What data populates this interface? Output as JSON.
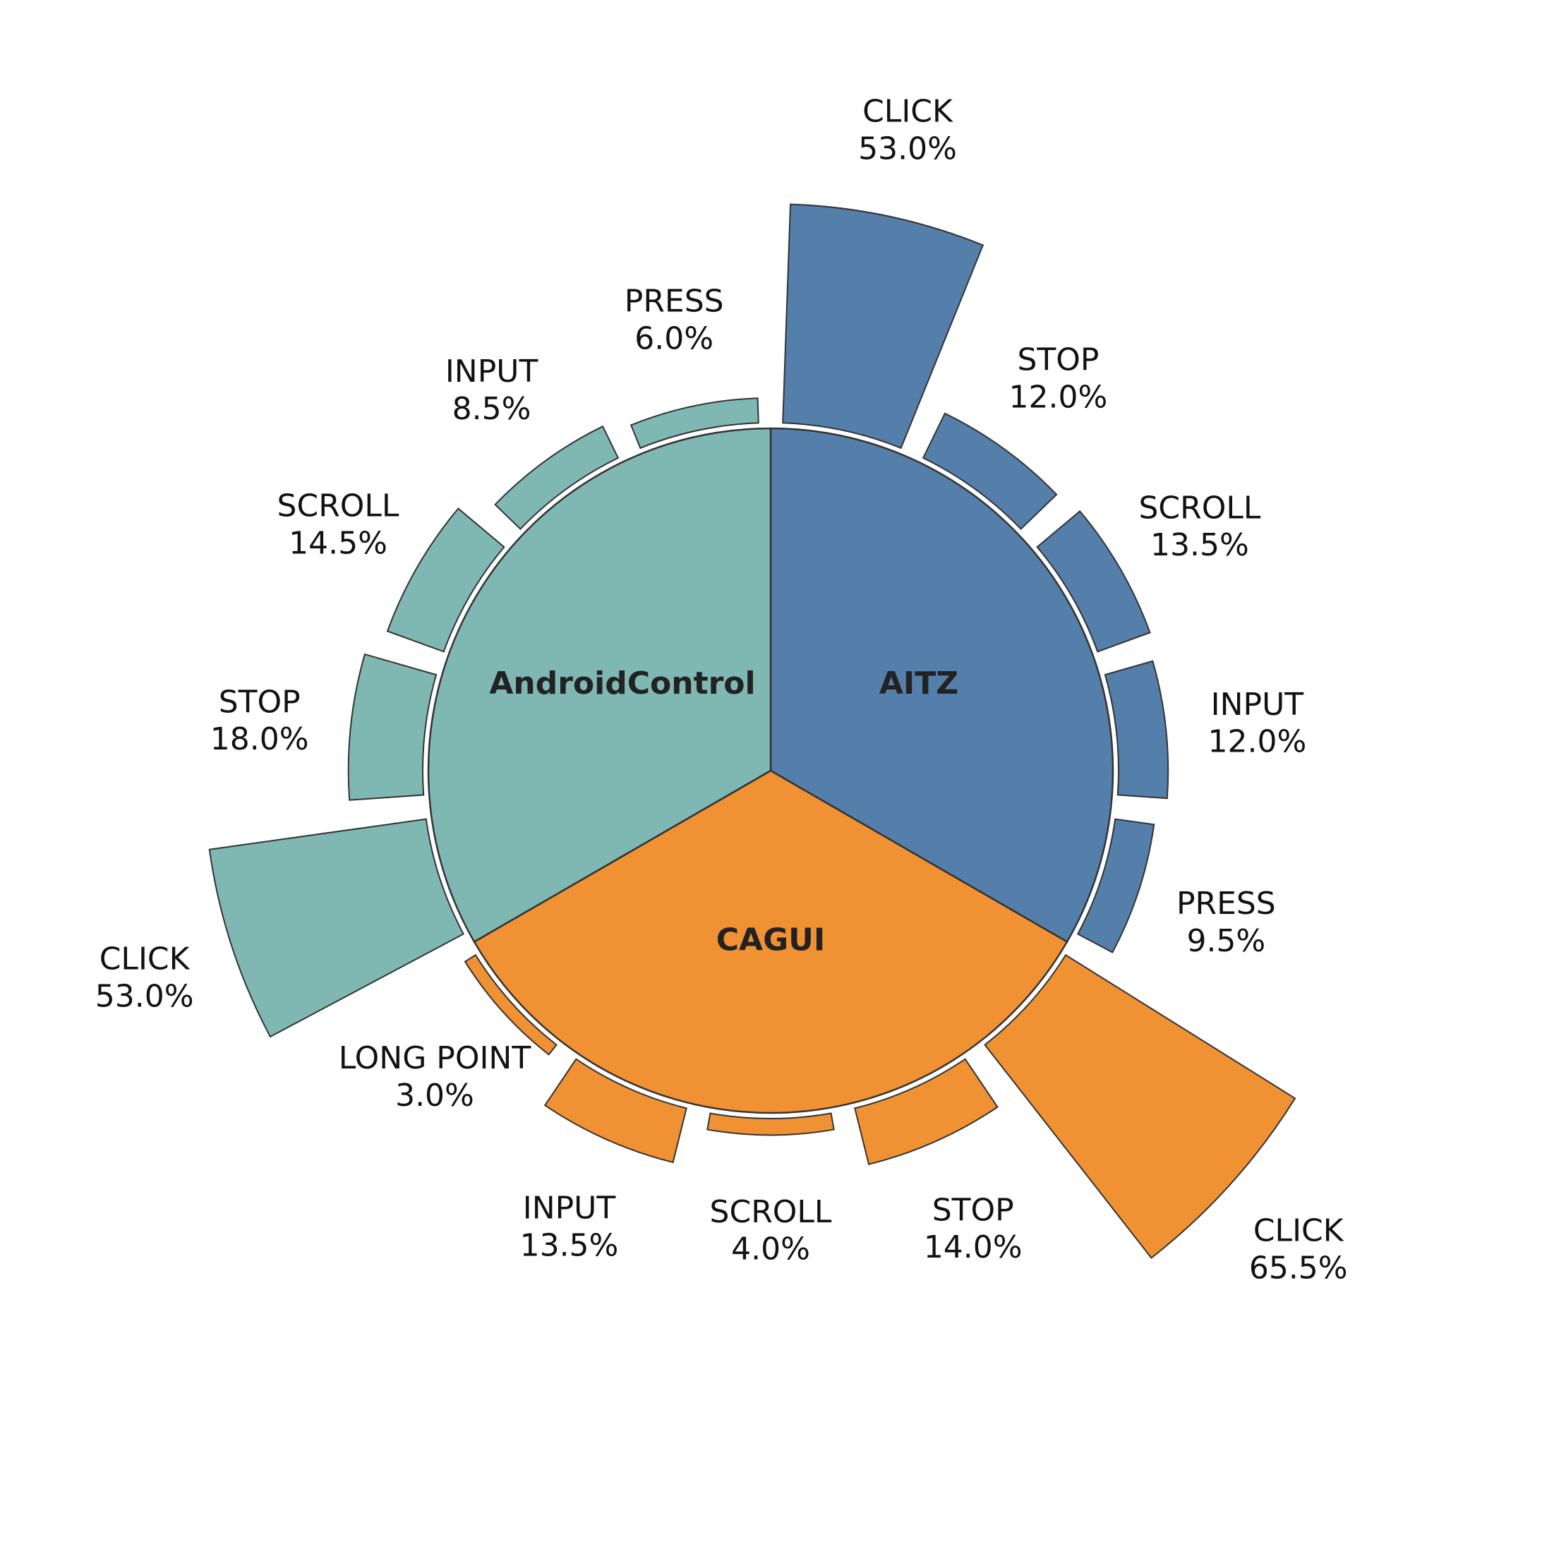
{
  "chart_data": {
    "type": "pie",
    "groups": [
      {
        "name": "AITZ",
        "color": "#557fab",
        "bars": [
          {
            "label": "CLICK",
            "value": 53.0,
            "pct": "53.0%"
          },
          {
            "label": "STOP",
            "value": 12.0,
            "pct": "12.0%"
          },
          {
            "label": "SCROLL",
            "value": 13.5,
            "pct": "13.5%"
          },
          {
            "label": "INPUT",
            "value": 12.0,
            "pct": "12.0%"
          },
          {
            "label": "PRESS",
            "value": 9.5,
            "pct": "9.5%"
          }
        ]
      },
      {
        "name": "CAGUI",
        "color": "#f09233",
        "bars": [
          {
            "label": "CLICK",
            "value": 65.5,
            "pct": "65.5%"
          },
          {
            "label": "STOP",
            "value": 14.0,
            "pct": "14.0%"
          },
          {
            "label": "SCROLL",
            "value": 4.0,
            "pct": "4.0%"
          },
          {
            "label": "INPUT",
            "value": 13.5,
            "pct": "13.5%"
          },
          {
            "label": "LONG POINT",
            "value": 3.0,
            "pct": "3.0%"
          }
        ]
      },
      {
        "name": "AndroidControl",
        "color": "#7fb8b3",
        "bars": [
          {
            "label": "CLICK",
            "value": 53.0,
            "pct": "53.0%"
          },
          {
            "label": "STOP",
            "value": 18.0,
            "pct": "18.0%"
          },
          {
            "label": "SCROLL",
            "value": 14.5,
            "pct": "14.5%"
          },
          {
            "label": "INPUT",
            "value": 8.5,
            "pct": "8.5%"
          },
          {
            "label": "PRESS",
            "value": 6.0,
            "pct": "6.0%"
          }
        ]
      }
    ],
    "edge_color": "#333333"
  }
}
